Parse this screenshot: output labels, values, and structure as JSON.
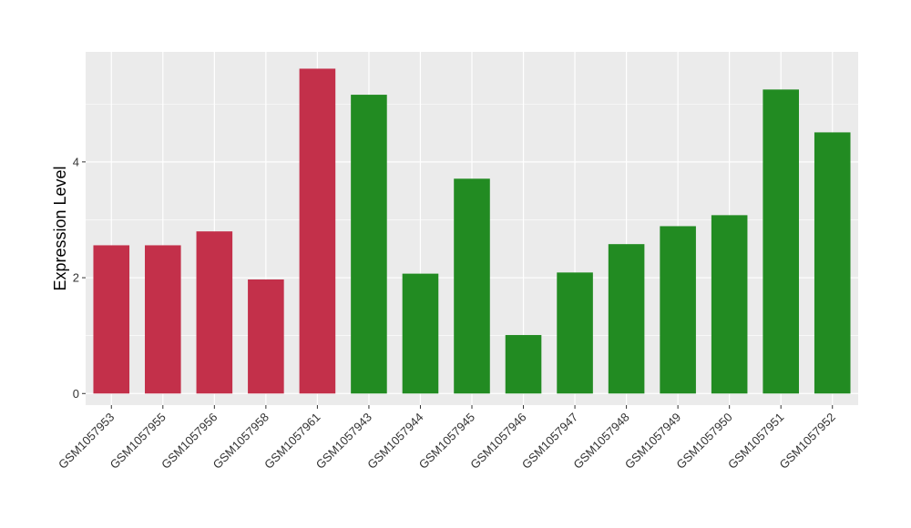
{
  "chart_data": {
    "type": "bar",
    "title": "",
    "xlabel": "",
    "ylabel": "Expression Level",
    "ylim": [
      -0.2,
      5.9
    ],
    "y_ticks": [
      0,
      2,
      4
    ],
    "grid": true,
    "legend": "none",
    "categories": [
      "GSM1057953",
      "GSM1057955",
      "GSM1057956",
      "GSM1057958",
      "GSM1057961",
      "GSM1057943",
      "GSM1057944",
      "GSM1057945",
      "GSM1057946",
      "GSM1057947",
      "GSM1057948",
      "GSM1057949",
      "GSM1057950",
      "GSM1057951",
      "GSM1057952"
    ],
    "values": [
      2.56,
      2.56,
      2.8,
      1.97,
      5.61,
      5.16,
      2.07,
      3.71,
      1.01,
      2.09,
      2.58,
      2.89,
      3.08,
      5.25,
      4.51
    ],
    "bar_colors": [
      "#C3304A",
      "#C3304A",
      "#C3304A",
      "#C3304A",
      "#C3304A",
      "#228B22",
      "#228B22",
      "#228B22",
      "#228B22",
      "#228B22",
      "#228B22",
      "#228B22",
      "#228B22",
      "#228B22",
      "#228B22"
    ],
    "panel_background": "#EBEBEB",
    "grid_color": "#FFFFFF"
  }
}
